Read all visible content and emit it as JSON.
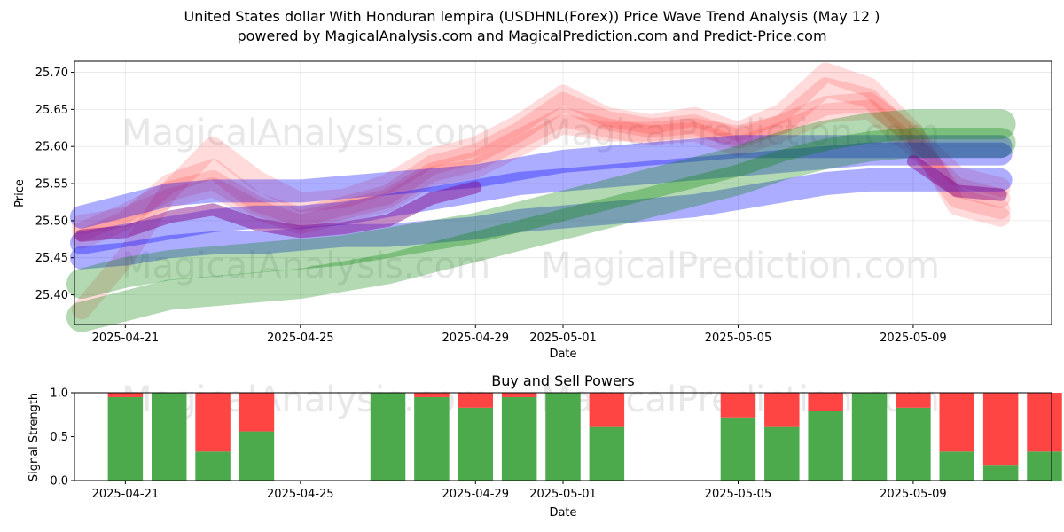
{
  "figure": {
    "title_line1": "United States dollar With Honduran lempira (USDHNL(Forex)) Price Wave Trend Analysis (May 12 )",
    "title_line2": "powered by MagicalAnalysis.com and MagicalPrediction.com and Predict-Price.com",
    "watermarks": [
      "MagicalAnalysis.com",
      "MagicalPrediction.com",
      "MagicalAnalysis.com",
      "MagicalPrediction.com",
      "MagicalAnalysis.com",
      "MagicalPrediction.com"
    ]
  },
  "chart_data": [
    {
      "type": "line",
      "xlabel": "Date",
      "ylabel": "Price",
      "ylim": [
        25.36,
        25.715
      ],
      "xlim": [
        "2025-04-20",
        "2025-05-12"
      ],
      "grid": true,
      "x_ticks": [
        "2025-04-21",
        "2025-04-25",
        "2025-04-29",
        "2025-05-01",
        "2025-05-05",
        "2025-05-09"
      ],
      "y_ticks": [
        25.4,
        25.45,
        25.5,
        25.55,
        25.6,
        25.65,
        25.7
      ],
      "y_tick_labels": [
        "25.40",
        "25.45",
        "25.50",
        "25.55",
        "25.60",
        "25.65",
        "25.70"
      ],
      "colors": {
        "red": "#ff0000",
        "blue": "#0000ff",
        "green": "#008000",
        "purple": "#800080"
      },
      "series": [
        {
          "color": "red",
          "x": [
            "2025-04-20",
            "2025-04-21",
            "2025-04-22",
            "2025-04-23",
            "2025-04-24",
            "2025-04-25",
            "2025-04-26",
            "2025-04-27",
            "2025-04-28",
            "2025-04-29",
            "2025-04-30",
            "2025-05-01",
            "2025-05-02",
            "2025-05-03",
            "2025-05-04",
            "2025-05-05",
            "2025-05-06",
            "2025-05-07",
            "2025-05-08",
            "2025-05-09",
            "2025-05-10",
            "2025-05-11"
          ],
          "y": [
            25.495,
            25.505,
            25.53,
            25.545,
            25.515,
            25.495,
            25.51,
            25.525,
            25.56,
            25.57,
            25.6,
            25.63,
            25.62,
            25.62,
            25.625,
            25.615,
            25.63,
            25.655,
            25.66,
            25.615,
            25.56,
            25.545
          ]
        },
        {
          "color": "red",
          "x": [
            "2025-04-20",
            "2025-04-21",
            "2025-04-22",
            "2025-04-23",
            "2025-04-24",
            "2025-04-25",
            "2025-04-26",
            "2025-04-27",
            "2025-04-28",
            "2025-04-29",
            "2025-04-30",
            "2025-05-01",
            "2025-05-02",
            "2025-05-03",
            "2025-05-04",
            "2025-05-05",
            "2025-05-06",
            "2025-05-07",
            "2025-05-08",
            "2025-05-09",
            "2025-05-10",
            "2025-05-11"
          ],
          "y": [
            25.485,
            25.51,
            25.54,
            25.555,
            25.52,
            25.5,
            25.515,
            25.53,
            25.565,
            25.58,
            25.61,
            25.64,
            25.625,
            25.615,
            25.62,
            25.6,
            25.62,
            25.645,
            25.65,
            25.6,
            25.545,
            25.53
          ]
        },
        {
          "color": "red",
          "x": [
            "2025-04-20",
            "2025-04-21",
            "2025-04-22",
            "2025-04-23",
            "2025-04-24",
            "2025-04-25",
            "2025-04-26",
            "2025-04-27",
            "2025-04-28",
            "2025-04-29",
            "2025-04-30",
            "2025-05-01",
            "2025-05-02",
            "2025-05-03",
            "2025-05-04",
            "2025-05-05",
            "2025-05-06",
            "2025-05-07",
            "2025-05-08",
            "2025-05-09",
            "2025-05-10",
            "2025-05-11"
          ],
          "y": [
            25.475,
            25.5,
            25.55,
            25.57,
            25.525,
            25.505,
            25.52,
            25.535,
            25.575,
            25.59,
            25.62,
            25.66,
            25.635,
            25.625,
            25.63,
            25.61,
            25.63,
            25.68,
            25.665,
            25.61,
            25.53,
            25.515
          ]
        },
        {
          "color": "red",
          "x": [
            "2025-04-20",
            "2025-04-21",
            "2025-04-22",
            "2025-04-23",
            "2025-04-24",
            "2025-04-25",
            "2025-04-26",
            "2025-04-27",
            "2025-04-28",
            "2025-04-29",
            "2025-04-30",
            "2025-05-01",
            "2025-05-02",
            "2025-05-03",
            "2025-05-04",
            "2025-05-05",
            "2025-05-06",
            "2025-05-07",
            "2025-05-08",
            "2025-05-09",
            "2025-05-10",
            "2025-05-11"
          ],
          "y": [
            25.38,
            25.45,
            25.54,
            25.6,
            25.555,
            25.525,
            25.53,
            25.55,
            25.585,
            25.6,
            25.63,
            25.67,
            25.64,
            25.63,
            25.64,
            25.62,
            25.645,
            25.7,
            25.68,
            25.62,
            25.52,
            25.505
          ]
        },
        {
          "color": "blue",
          "x": [
            "2025-04-20",
            "2025-04-21",
            "2025-04-22",
            "2025-04-23",
            "2025-04-24",
            "2025-04-25",
            "2025-04-26",
            "2025-04-27",
            "2025-04-28",
            "2025-04-29",
            "2025-04-30",
            "2025-05-01",
            "2025-05-02",
            "2025-05-03",
            "2025-05-04",
            "2025-05-05",
            "2025-05-06",
            "2025-05-07",
            "2025-05-08",
            "2025-05-09",
            "2025-05-10",
            "2025-05-11"
          ],
          "y": [
            25.505,
            25.52,
            25.535,
            25.54,
            25.54,
            25.54,
            25.545,
            25.55,
            25.555,
            25.56,
            25.57,
            25.58,
            25.585,
            25.59,
            25.595,
            25.6,
            25.6,
            25.6,
            25.6,
            25.6,
            25.6,
            25.6
          ]
        },
        {
          "color": "blue",
          "x": [
            "2025-04-20",
            "2025-04-21",
            "2025-04-22",
            "2025-04-23",
            "2025-04-24",
            "2025-04-25",
            "2025-04-26",
            "2025-04-27",
            "2025-04-28",
            "2025-04-29",
            "2025-04-30",
            "2025-05-01",
            "2025-05-02",
            "2025-05-03",
            "2025-05-04",
            "2025-05-05",
            "2025-05-06",
            "2025-05-07",
            "2025-05-08",
            "2025-05-09",
            "2025-05-10",
            "2025-05-11"
          ],
          "y": [
            25.47,
            25.48,
            25.49,
            25.5,
            25.505,
            25.505,
            25.51,
            25.52,
            25.53,
            25.54,
            25.55,
            25.555,
            25.56,
            25.565,
            25.57,
            25.575,
            25.58,
            25.585,
            25.59,
            25.59,
            25.59,
            25.59
          ]
        },
        {
          "color": "blue",
          "x": [
            "2025-04-20",
            "2025-04-21",
            "2025-04-22",
            "2025-04-23",
            "2025-04-24",
            "2025-04-25",
            "2025-04-26",
            "2025-04-27",
            "2025-04-28",
            "2025-04-29",
            "2025-04-30",
            "2025-05-01",
            "2025-05-02",
            "2025-05-03",
            "2025-05-04",
            "2025-05-05",
            "2025-05-06",
            "2025-05-07",
            "2025-05-08",
            "2025-05-09",
            "2025-05-10",
            "2025-05-11"
          ],
          "y": [
            25.45,
            25.455,
            25.465,
            25.47,
            25.47,
            25.475,
            25.48,
            25.48,
            25.485,
            25.49,
            25.5,
            25.505,
            25.51,
            25.515,
            25.52,
            25.53,
            25.54,
            25.55,
            25.555,
            25.555,
            25.555,
            25.555
          ]
        },
        {
          "color": "green",
          "x": [
            "2025-04-20",
            "2025-04-21",
            "2025-04-22",
            "2025-04-23",
            "2025-04-24",
            "2025-04-25",
            "2025-04-26",
            "2025-04-27",
            "2025-04-28",
            "2025-04-29",
            "2025-04-30",
            "2025-05-01",
            "2025-05-02",
            "2025-05-03",
            "2025-05-04",
            "2025-05-05",
            "2025-05-06",
            "2025-05-07",
            "2025-05-08",
            "2025-05-09",
            "2025-05-10",
            "2025-05-11"
          ],
          "y": [
            25.415,
            25.43,
            25.44,
            25.445,
            25.45,
            25.455,
            25.46,
            25.47,
            25.48,
            25.49,
            25.505,
            25.52,
            25.535,
            25.55,
            25.565,
            25.58,
            25.6,
            25.615,
            25.625,
            25.63,
            25.63,
            25.63
          ]
        },
        {
          "color": "green",
          "x": [
            "2025-04-20",
            "2025-04-21",
            "2025-04-22",
            "2025-04-23",
            "2025-04-24",
            "2025-04-25",
            "2025-04-26",
            "2025-04-27",
            "2025-04-28",
            "2025-04-29",
            "2025-04-30",
            "2025-05-01",
            "2025-05-02",
            "2025-05-03",
            "2025-05-04",
            "2025-05-05",
            "2025-05-06",
            "2025-05-07",
            "2025-05-08",
            "2025-05-09",
            "2025-05-10",
            "2025-05-11"
          ],
          "y": [
            25.37,
            25.385,
            25.4,
            25.405,
            25.41,
            25.415,
            25.425,
            25.435,
            25.45,
            25.465,
            25.48,
            25.495,
            25.51,
            25.525,
            25.54,
            25.555,
            25.575,
            25.59,
            25.6,
            25.605,
            25.605,
            25.605
          ]
        },
        {
          "color": "purple",
          "x": [
            "2025-04-20",
            "2025-04-21",
            "2025-04-22",
            "2025-04-23",
            "2025-04-24",
            "2025-04-25",
            "2025-04-26",
            "2025-04-27",
            "2025-04-28",
            "2025-04-29"
          ],
          "y": [
            25.48,
            25.485,
            25.505,
            25.515,
            25.495,
            25.485,
            25.49,
            25.5,
            25.53,
            25.545
          ]
        },
        {
          "color": "purple",
          "x": [
            "2025-05-09",
            "2025-05-10",
            "2025-05-11"
          ],
          "y": [
            25.58,
            25.54,
            25.535
          ]
        }
      ]
    },
    {
      "type": "bar",
      "title": "Buy and Sell Powers",
      "xlabel": "Date",
      "ylabel": "Signal Strength",
      "ylim": [
        0,
        1.0
      ],
      "xlim": [
        "2025-04-20",
        "2025-05-12"
      ],
      "x_ticks": [
        "2025-04-21",
        "2025-04-25",
        "2025-04-29",
        "2025-05-01",
        "2025-05-05",
        "2025-05-09"
      ],
      "y_ticks": [
        0,
        0.5,
        1.0
      ],
      "y_tick_labels": [
        "0.0",
        "0.5",
        "1.0"
      ],
      "colors": {
        "buy": "#4caa4c",
        "sell": "#ff4444"
      },
      "categories": [
        "2025-04-22",
        "2025-04-23",
        "2025-04-24",
        "2025-04-25",
        "2025-04-28",
        "2025-04-29",
        "2025-04-30",
        "2025-05-01",
        "2025-05-02",
        "2025-05-03",
        "2025-05-06",
        "2025-05-07",
        "2025-05-08",
        "2025-05-09",
        "2025-05-10",
        "2025-05-11",
        "2025-05-12",
        "2025-05-13"
      ],
      "series": [
        {
          "key": "buy",
          "values": [
            0.95,
            1.0,
            0.33,
            0.56,
            1.0,
            0.95,
            0.83,
            0.95,
            1.0,
            0.61,
            0.72,
            0.61,
            0.79,
            1.0,
            0.83,
            0.33,
            0.17,
            0.33
          ]
        },
        {
          "key": "sell",
          "values": [
            0.05,
            0.0,
            0.67,
            0.44,
            0.0,
            0.05,
            0.17,
            0.05,
            0.0,
            0.39,
            0.28,
            0.39,
            0.21,
            0.0,
            0.17,
            0.67,
            0.83,
            0.67
          ]
        }
      ]
    }
  ]
}
